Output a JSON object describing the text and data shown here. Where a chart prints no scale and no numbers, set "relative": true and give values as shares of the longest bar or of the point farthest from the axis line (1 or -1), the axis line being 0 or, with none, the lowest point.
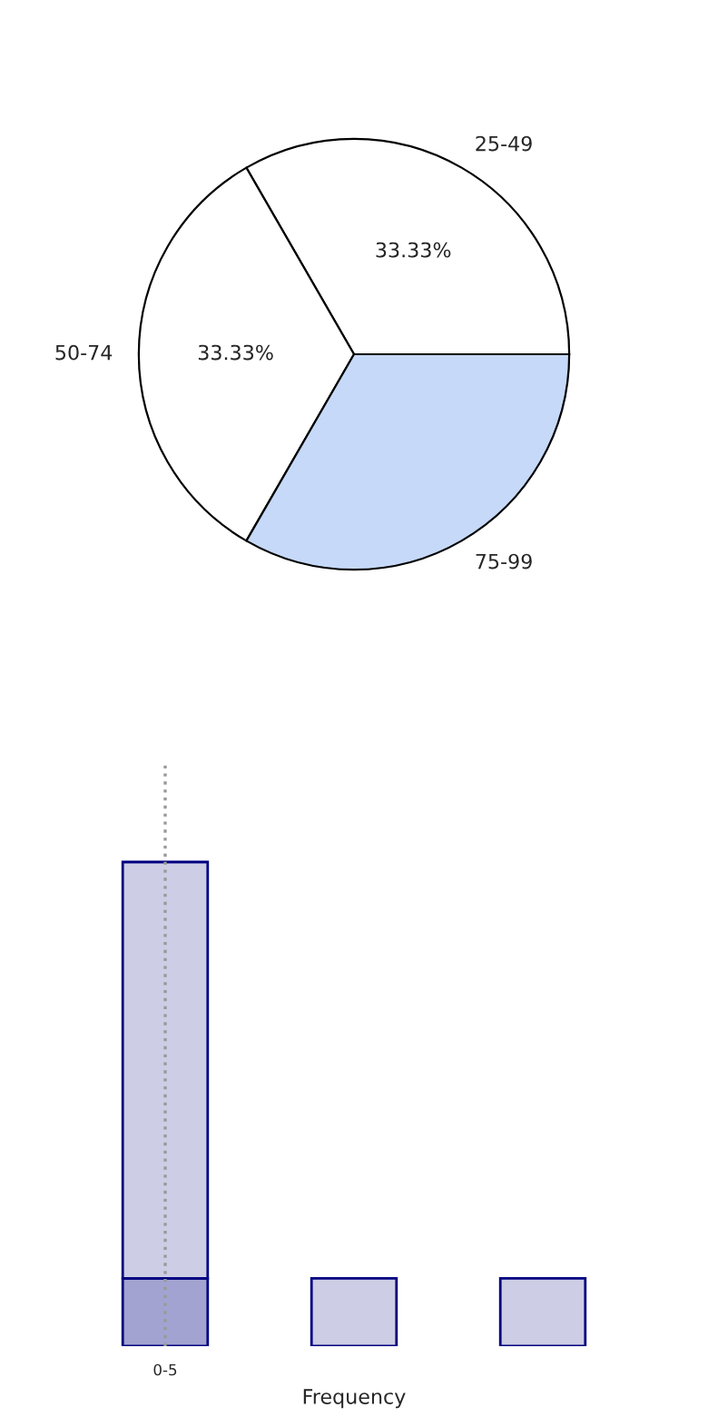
{
  "chart_data": [
    {
      "type": "pie",
      "categories": [
        "25-49",
        "50-74",
        "75-99"
      ],
      "values": [
        33.33,
        33.33,
        33.33
      ],
      "colors": [
        "#ffffff",
        "#ffffff",
        "#c6d9f8"
      ],
      "value_labels": [
        "33.33%",
        "33.33%",
        null
      ]
    },
    {
      "type": "bar",
      "categories": [
        "0-5",
        null,
        null
      ],
      "relative": true,
      "stacked": true,
      "tick_labels": "x",
      "ref_lines": [
        {
          "axis": "x",
          "value": "0-5",
          "color": "#999999",
          "line_style": "dotted"
        }
      ],
      "xlabel": "Frequency",
      "series": [
        {
          "color": "#a3a3d1",
          "values": [
            0.14,
            null,
            null
          ]
        },
        {
          "color": "#cdcde5",
          "values": [
            0.86,
            0.14,
            0.14
          ]
        }
      ]
    }
  ]
}
